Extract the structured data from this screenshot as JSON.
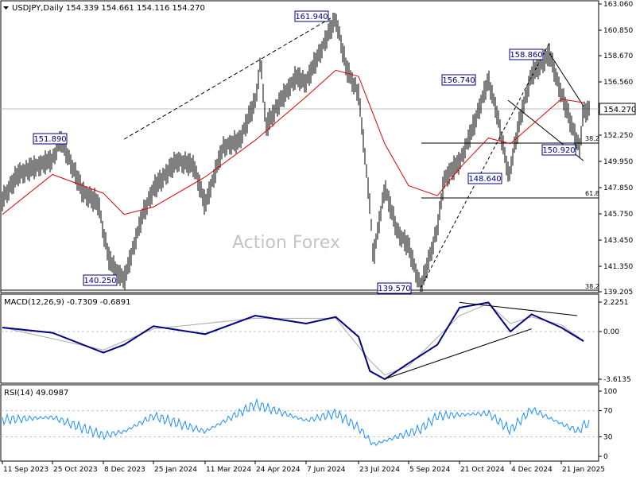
{
  "main_panel": {
    "info": "USDJPY,Daily  154.339 154.661 154.116 154.270",
    "current_price": "154.270",
    "watermark": "Action Forex"
  },
  "chart_data": [
    {
      "type": "line",
      "title": "USDJPY,Daily  154.339 154.661 154.116 154.270",
      "ylim": [
        139.205,
        163.06
      ],
      "y_ticks": [
        "163.060",
        "160.850",
        "158.670",
        "156.560",
        "154.270",
        "152.250",
        "149.950",
        "147.850",
        "145.750",
        "143.450",
        "141.350",
        "139.205"
      ],
      "x_ticks": [
        "11 Sep 2023",
        "25 Oct 2023",
        "8 Dec 2023",
        "25 Jan 2024",
        "11 Mar 2024",
        "24 Apr 2024",
        "7 Jun 2024",
        "23 Jul 2024",
        "5 Sep 2024",
        "21 Oct 2024",
        "4 Dec 2024",
        "21 Jan 2025"
      ],
      "series": [
        {
          "style": "bars",
          "values": [
            [
              "11 Sep 2023",
              147.0
            ],
            [
              "25 Sep 2023",
              149.0
            ],
            [
              "10 Oct 2023",
              149.6
            ],
            [
              "25 Oct 2023",
              150.2
            ],
            [
              "1 Nov 2023",
              151.9
            ],
            [
              "20 Nov 2023",
              147.6
            ],
            [
              "4 Dec 2023",
              146.6
            ],
            [
              "8 Dec 2023",
              144.2
            ],
            [
              "14 Dec 2023",
              141.8
            ],
            [
              "28 Dec 2023",
              140.25
            ],
            [
              "15 Jan 2024",
              145.8
            ],
            [
              "25 Jan 2024",
              147.8
            ],
            [
              "15 Feb 2024",
              150.1
            ],
            [
              "1 Mar 2024",
              149.7
            ],
            [
              "11 Mar 2024",
              146.5
            ],
            [
              "27 Mar 2024",
              151.3
            ],
            [
              "10 Apr 2024",
              151.8
            ],
            [
              "24 Apr 2024",
              155.0
            ],
            [
              "29 Apr 2024",
              158.4
            ],
            [
              "3 May 2024",
              152.9
            ],
            [
              "15 May 2024",
              154.9
            ],
            [
              "29 May 2024",
              157.0
            ],
            [
              "7 Jun 2024",
              156.6
            ],
            [
              "20 Jun 2024",
              159.2
            ],
            [
              "3 Jul 2024",
              161.94
            ],
            [
              "12 Jul 2024",
              157.8
            ],
            [
              "23 Jul 2024",
              155.6
            ],
            [
              "2 Aug 2024",
              146.5
            ],
            [
              "5 Aug 2024",
              142.0
            ],
            [
              "15 Aug 2024",
              148.0
            ],
            [
              "26 Aug 2024",
              144.3
            ],
            [
              "5 Sep 2024",
              143.0
            ],
            [
              "16 Sep 2024",
              139.57
            ],
            [
              "1 Oct 2024",
              144.5
            ],
            [
              "7 Oct 2024",
              148.6
            ],
            [
              "21 Oct 2024",
              150.0
            ],
            [
              "1 Nov 2024",
              152.7
            ],
            [
              "15 Nov 2024",
              156.74
            ],
            [
              "22 Nov 2024",
              154.2
            ],
            [
              "4 Dec 2024",
              149.6
            ],
            [
              "3 Dec 2024",
              148.64
            ],
            [
              "13 Dec 2024",
              153.5
            ],
            [
              "24 Dec 2024",
              157.2
            ],
            [
              "10 Jan 2025",
              158.86
            ],
            [
              "21 Jan 2025",
              155.6
            ],
            [
              "5 Feb 2025",
              151.8
            ],
            [
              "7 Feb 2025",
              150.92
            ],
            [
              "11 Feb 2025",
              154.27
            ]
          ]
        },
        {
          "name": "",
          "values": [
            [
              "11 Sep 2023",
              145.7
            ],
            [
              "25 Oct 2023",
              148.9
            ],
            [
              "8 Dec 2023",
              147.4
            ],
            [
              "28 Dec 2023",
              145.7
            ],
            [
              "25 Jan 2024",
              146.3
            ],
            [
              "11 Mar 2024",
              148.7
            ],
            [
              "24 Apr 2024",
              151.8
            ],
            [
              "7 Jun 2024",
              155.3
            ],
            [
              "3 Jul 2024",
              157.5
            ],
            [
              "23 Jul 2024",
              157.0
            ],
            [
              "15 Aug 2024",
              151.5
            ],
            [
              "5 Sep 2024",
              148.0
            ],
            [
              "1 Oct 2024",
              147.2
            ],
            [
              "21 Oct 2024",
              149.4
            ],
            [
              "15 Nov 2024",
              152.0
            ],
            [
              "4 Dec 2024",
              151.5
            ],
            [
              "21 Jan 2025",
              155.1
            ],
            [
              "11 Feb 2025",
              154.8
            ]
          ]
        }
      ],
      "annotations": [
        "161.940",
        "151.890",
        "140.250",
        "139.570",
        "156.740",
        "158.860",
        "148.640",
        "150.920",
        "38.2",
        "61.8",
        "38.2"
      ]
    },
    {
      "type": "line",
      "title": "MACD(12,26,9) -0.7309 -0.6891",
      "ylim": [
        -3.6135,
        2.2251
      ],
      "y_ticks": [
        "2.2251",
        "0.00",
        "-3.6135"
      ],
      "series": [
        {
          "name": "MACD",
          "values": [
            [
              "11 Sep 2023",
              0.3
            ],
            [
              "25 Oct 2023",
              -0.1
            ],
            [
              "8 Dec 2023",
              -1.6
            ],
            [
              "28 Dec 2023",
              -1.0
            ],
            [
              "25 Jan 2024",
              0.4
            ],
            [
              "11 Mar 2024",
              -0.2
            ],
            [
              "24 Apr 2024",
              1.2
            ],
            [
              "7 Jun 2024",
              0.6
            ],
            [
              "3 Jul 2024",
              1.1
            ],
            [
              "23 Jul 2024",
              -0.4
            ],
            [
              "2 Aug 2024",
              -3.0
            ],
            [
              "15 Aug 2024",
              -3.61
            ],
            [
              "5 Sep 2024",
              -2.4
            ],
            [
              "1 Oct 2024",
              -1.0
            ],
            [
              "21 Oct 2024",
              1.8
            ],
            [
              "15 Nov 2024",
              2.2
            ],
            [
              "4 Dec 2024",
              0.0
            ],
            [
              "24 Dec 2024",
              1.3
            ],
            [
              "21 Jan 2025",
              0.3
            ],
            [
              "11 Feb 2025",
              -0.73
            ]
          ]
        },
        {
          "name": "Signal",
          "values": [
            [
              "11 Sep 2023",
              0.3
            ],
            [
              "8 Dec 2023",
              -1.4
            ],
            [
              "25 Jan 2024",
              0.2
            ],
            [
              "24 Apr 2024",
              1.0
            ],
            [
              "3 Jul 2024",
              1.0
            ],
            [
              "2 Aug 2024",
              -2.2
            ],
            [
              "15 Aug 2024",
              -3.3
            ],
            [
              "5 Sep 2024",
              -2.6
            ],
            [
              "21 Oct 2024",
              1.2
            ],
            [
              "15 Nov 2024",
              2.1
            ],
            [
              "4 Dec 2024",
              0.6
            ],
            [
              "24 Dec 2024",
              1.1
            ],
            [
              "21 Jan 2025",
              0.5
            ],
            [
              "11 Feb 2025",
              -0.69
            ]
          ]
        }
      ]
    },
    {
      "type": "line",
      "title": "RSI(14) 49.0987",
      "ylim": [
        0,
        100
      ],
      "y_ticks": [
        "100",
        "70",
        "30",
        "0"
      ],
      "series": [
        {
          "name": "RSI",
          "values": [
            [
              "11 Sep 2023",
              56
            ],
            [
              "25 Oct 2023",
              60
            ],
            [
              "8 Dec 2023",
              32
            ],
            [
              "28 Dec 2023",
              38
            ],
            [
              "25 Jan 2024",
              62
            ],
            [
              "11 Mar 2024",
              38
            ],
            [
              "24 Apr 2024",
              80
            ],
            [
              "7 Jun 2024",
              55
            ],
            [
              "3 Jul 2024",
              66
            ],
            [
              "23 Jul 2024",
              44
            ],
            [
              "5 Aug 2024",
              18
            ],
            [
              "16 Sep 2024",
              42
            ],
            [
              "1 Oct 2024",
              62
            ],
            [
              "15 Nov 2024",
              66
            ],
            [
              "4 Dec 2024",
              40
            ],
            [
              "24 Dec 2024",
              72
            ],
            [
              "21 Jan 2025",
              50
            ],
            [
              "7 Feb 2025",
              38
            ],
            [
              "11 Feb 2025",
              49.1
            ]
          ]
        }
      ]
    }
  ],
  "macd_panel": {
    "info": "MACD(12,26,9) -0.7309 -0.6891"
  },
  "rsi_panel": {
    "info": "RSI(14) 49.0987"
  },
  "colors": {
    "price": "#000000",
    "ma": "#e00000",
    "macd": "#000080",
    "signal": "#aaaaaa",
    "rsi": "#1e90ff",
    "grid": "#c0c0c0"
  }
}
